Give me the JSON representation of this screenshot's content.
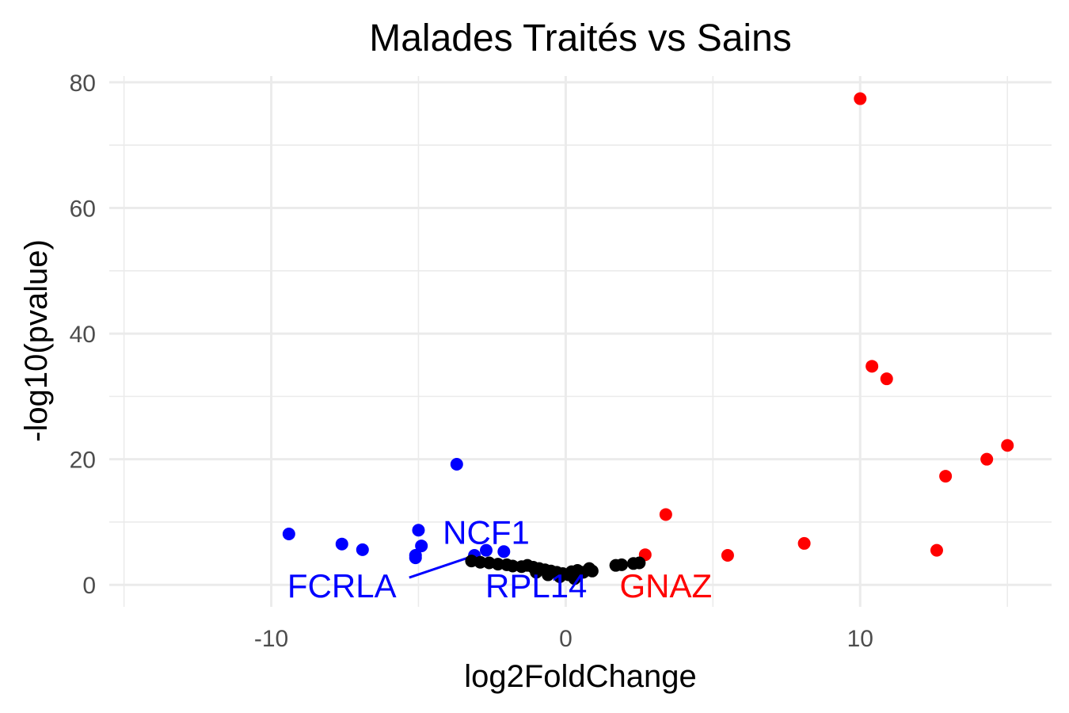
{
  "chart_data": {
    "type": "scatter",
    "title": "Malades Traités vs Sains",
    "xlabel": "log2FoldChange",
    "ylabel": "-log10(pvalue)",
    "xlim": [
      -15.5,
      16.5
    ],
    "ylim": [
      -3.5,
      81
    ],
    "xticks": [
      -10,
      0,
      10
    ],
    "xtick_labels": [
      "-10",
      "0",
      "10"
    ],
    "yticks": [
      0,
      20,
      40,
      60,
      80
    ],
    "ytick_labels": [
      "0",
      "20",
      "40",
      "60",
      "80"
    ],
    "grid": true,
    "legend": "none",
    "colors": {
      "down": "#0000ff",
      "up": "#ff0000",
      "ns": "#000000"
    },
    "series": [
      {
        "color": "#0000ff",
        "points": [
          {
            "x": -9.4,
            "y": 8.1
          },
          {
            "x": -7.6,
            "y": 6.5
          },
          {
            "x": -6.9,
            "y": 5.6
          },
          {
            "x": -5.0,
            "y": 8.7
          },
          {
            "x": -4.9,
            "y": 6.2
          },
          {
            "x": -5.1,
            "y": 4.7
          },
          {
            "x": -5.1,
            "y": 4.3
          },
          {
            "x": -3.7,
            "y": 19.2
          },
          {
            "x": -3.1,
            "y": 4.7
          },
          {
            "x": -2.7,
            "y": 5.5
          },
          {
            "x": -2.1,
            "y": 5.3
          }
        ]
      },
      {
        "color": "#ff0000",
        "points": [
          {
            "x": 10.0,
            "y": 77.4
          },
          {
            "x": 10.4,
            "y": 34.8
          },
          {
            "x": 10.9,
            "y": 32.8
          },
          {
            "x": 15.0,
            "y": 22.2
          },
          {
            "x": 14.3,
            "y": 20.0
          },
          {
            "x": 12.9,
            "y": 17.3
          },
          {
            "x": 3.4,
            "y": 11.2
          },
          {
            "x": 8.1,
            "y": 6.6
          },
          {
            "x": 12.6,
            "y": 5.5
          },
          {
            "x": 5.5,
            "y": 4.7
          },
          {
            "x": 2.7,
            "y": 4.8
          }
        ]
      },
      {
        "color": "#000000",
        "points": [
          {
            "x": -3.2,
            "y": 3.8
          },
          {
            "x": -2.9,
            "y": 3.6
          },
          {
            "x": -2.6,
            "y": 3.5
          },
          {
            "x": -2.3,
            "y": 3.3
          },
          {
            "x": -2.0,
            "y": 3.2
          },
          {
            "x": -1.8,
            "y": 3.0
          },
          {
            "x": -1.5,
            "y": 2.9
          },
          {
            "x": -1.3,
            "y": 3.1
          },
          {
            "x": -1.1,
            "y": 2.8
          },
          {
            "x": -0.9,
            "y": 2.6
          },
          {
            "x": -0.7,
            "y": 2.4
          },
          {
            "x": -0.5,
            "y": 2.2
          },
          {
            "x": -0.3,
            "y": 2.0
          },
          {
            "x": -0.1,
            "y": 1.8
          },
          {
            "x": 0.1,
            "y": 1.6
          },
          {
            "x": 0.2,
            "y": 2.1
          },
          {
            "x": 0.4,
            "y": 2.3
          },
          {
            "x": 0.6,
            "y": 2.0
          },
          {
            "x": 0.8,
            "y": 2.6
          },
          {
            "x": 0.9,
            "y": 2.2
          },
          {
            "x": -1.0,
            "y": 2.0
          },
          {
            "x": -0.6,
            "y": 1.6
          },
          {
            "x": -0.2,
            "y": 1.3
          },
          {
            "x": 0.3,
            "y": 1.0
          },
          {
            "x": 1.7,
            "y": 3.1
          },
          {
            "x": 1.9,
            "y": 3.2
          },
          {
            "x": 2.3,
            "y": 3.4
          },
          {
            "x": 2.5,
            "y": 3.5
          }
        ]
      }
    ],
    "labels": [
      {
        "text": "NCF1",
        "x": -2.7,
        "y": 8.4,
        "color": "#0000ff",
        "point": {
          "x": -2.7,
          "y": 5.5
        }
      },
      {
        "text": "FCRLA",
        "x": -7.6,
        "y": -0.1,
        "color": "#0000ff",
        "point": {
          "x": -3.2,
          "y": 4.5
        }
      },
      {
        "text": "RPL14",
        "x": -1.0,
        "y": -0.1,
        "color": "#0000ff",
        "point": {
          "x": 0.1,
          "y": 1.6
        }
      },
      {
        "text": "GNAZ",
        "x": 3.4,
        "y": -0.1,
        "color": "#ff0000",
        "point": {
          "x": 2.7,
          "y": 4.8
        }
      }
    ]
  }
}
